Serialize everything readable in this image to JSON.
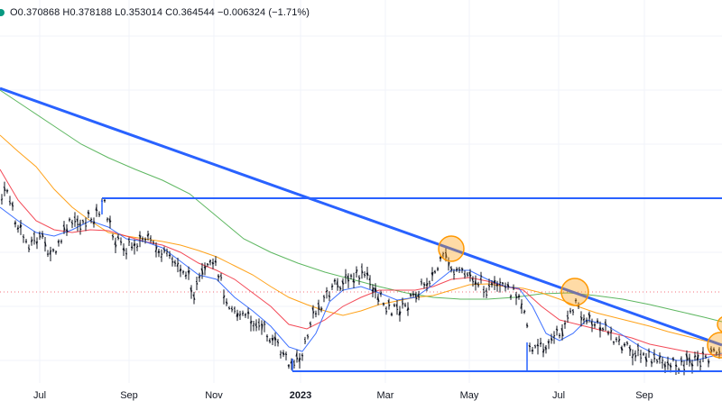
{
  "legend": {
    "open": "O0.370868",
    "high": "H0.378188",
    "low": "L0.353014",
    "close": "C0.364544",
    "change": "−0.006324 (−1.71%)"
  },
  "x_axis_labels": [
    "Jul",
    "Sep",
    "Nov",
    "2023",
    "Mar",
    "May",
    "Jul",
    "Sep"
  ],
  "colors": {
    "price_bars": "#131722",
    "trendline": "#2962ff",
    "ma_fast": "#2962ff",
    "ma_mid": "#f23645",
    "ma_slow": "#ff9800",
    "ma_long": "#4caf50",
    "highlight_circle": "#ff9800",
    "gridline": "#f0f3fa",
    "current_price_line": "#f23645"
  },
  "chart_data": {
    "type": "ohlc",
    "x_axis": [
      "Jul",
      "Sep",
      "Nov",
      "2023",
      "Mar",
      "May",
      "Jul",
      "Sep"
    ],
    "series_shown": [
      "price bars",
      "moving average (blue)",
      "moving average (red)",
      "moving average (orange)",
      "moving average (green)"
    ],
    "drawings": [
      "descending trendline",
      "horizontal resistance line",
      "horizontal support line",
      "4 highlighted touch points"
    ],
    "last_ohlc": {
      "open": 0.370868,
      "high": 0.378188,
      "low": 0.353014,
      "close": 0.364544,
      "change": -0.006324,
      "change_percent": -1.71
    }
  }
}
